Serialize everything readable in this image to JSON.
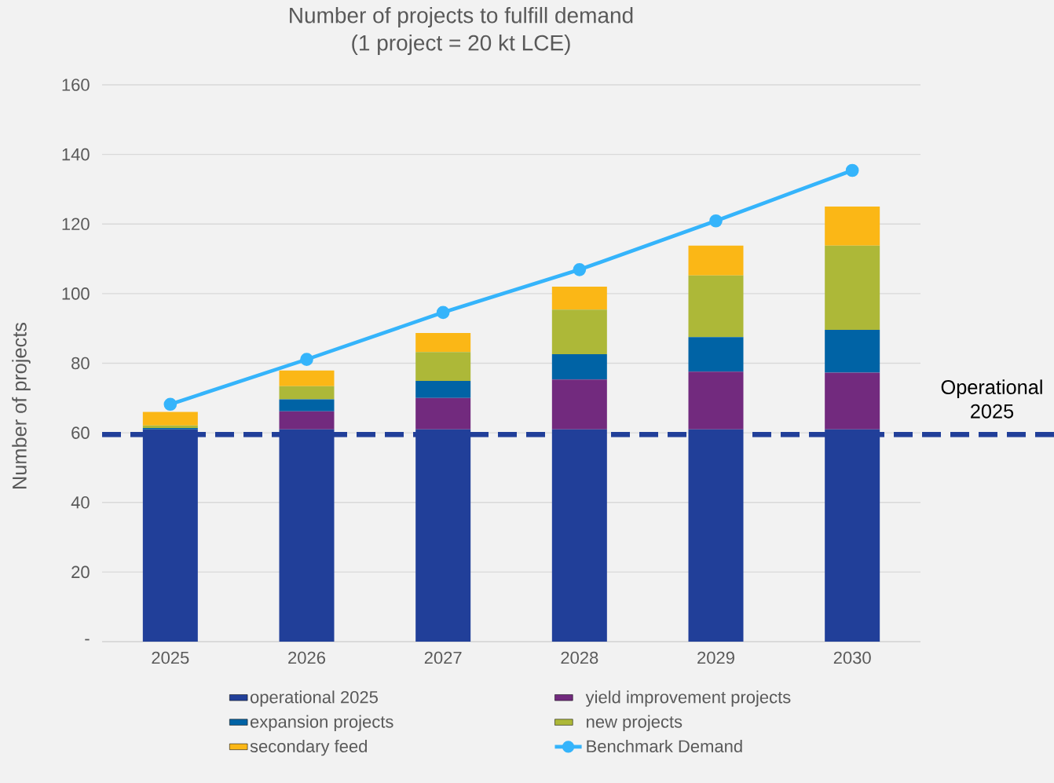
{
  "chart_data": {
    "type": "bar",
    "title": "Number of projects to fulfill demand",
    "subtitle": "(1 project = 20 kt LCE)",
    "ylabel": "Number of projects",
    "categories": [
      "2025",
      "2026",
      "2027",
      "2028",
      "2029",
      "2030"
    ],
    "stacked": true,
    "series": [
      {
        "name": "operational 2025",
        "color": "#213f99",
        "values": [
          61,
          61,
          61,
          61,
          61,
          61
        ]
      },
      {
        "name": "yield improvement projects",
        "color": "#722a7e",
        "values": [
          0,
          5.2,
          9.0,
          14.3,
          16.6,
          16.3
        ]
      },
      {
        "name": "expansion projects",
        "color": "#0063a5",
        "values": [
          0.4,
          3.4,
          4.9,
          7.3,
          9.9,
          12.3
        ]
      },
      {
        "name": "new projects",
        "color": "#adb838",
        "values": [
          0.7,
          3.8,
          8.3,
          12.8,
          17.7,
          24.2
        ]
      },
      {
        "name": "secondary feed",
        "color": "#fbb716",
        "values": [
          3.9,
          4.5,
          5.5,
          6.6,
          8.6,
          11.2
        ]
      },
      {
        "name": "Benchmark Demand",
        "type": "line",
        "color": "#35b4fb",
        "marker": "circle",
        "values": [
          68.2,
          81.1,
          94.6,
          106.9,
          120.9,
          135.4
        ]
      }
    ],
    "ylim": [
      0,
      160
    ],
    "yticks": [
      {
        "value": 0,
        "label": "-"
      },
      20,
      40,
      60,
      80,
      100,
      120,
      140,
      160
    ],
    "grid": "y",
    "legend": "bottom",
    "ref_lines": [
      {
        "axis": "y",
        "value": 59.5,
        "label": "Operational 2025",
        "color": "#213f99",
        "line_style": "dashed"
      }
    ]
  }
}
